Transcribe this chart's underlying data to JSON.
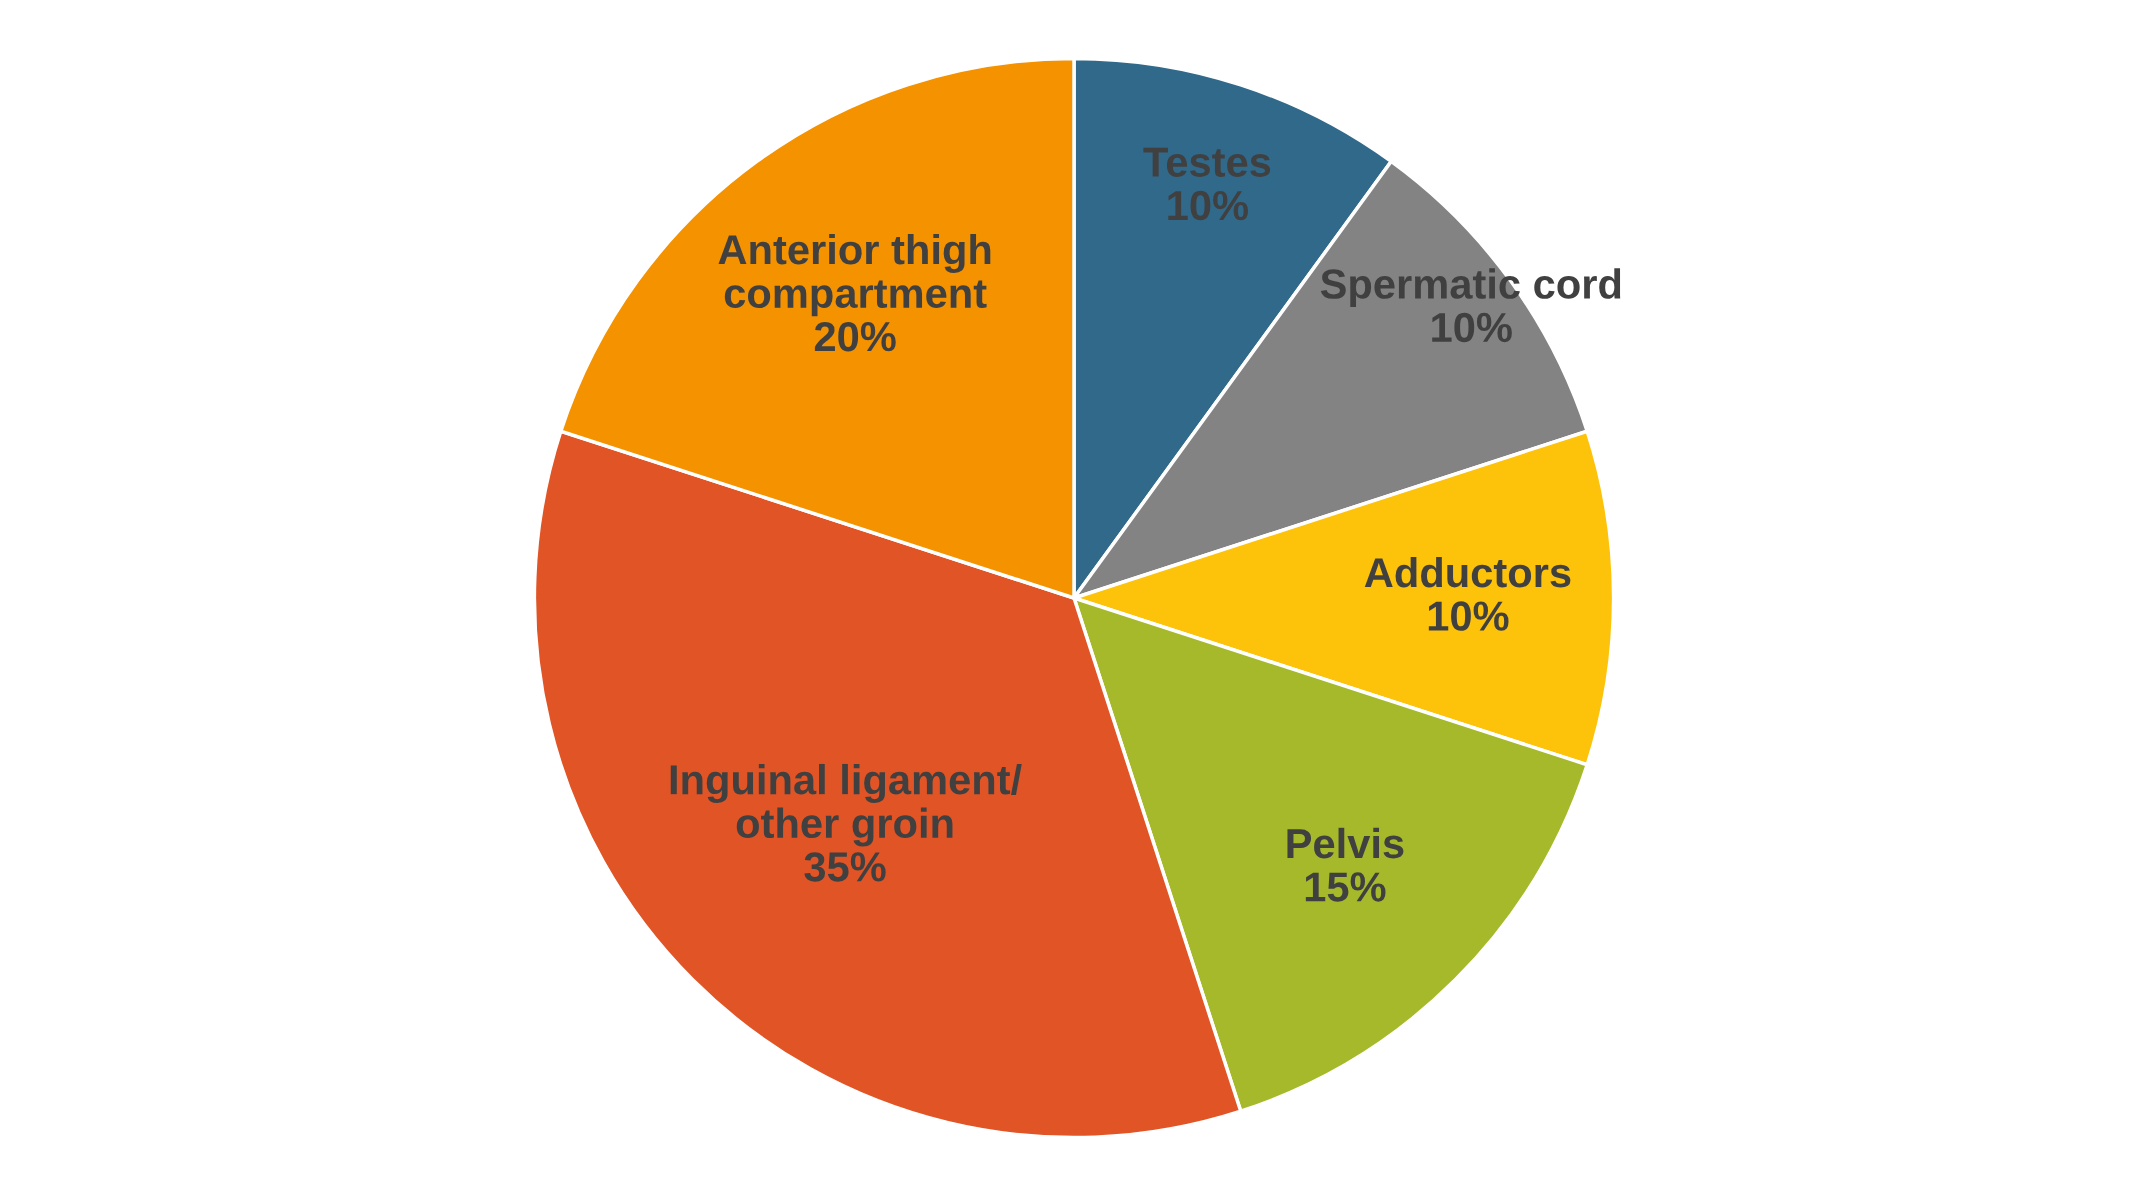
{
  "chart_data": {
    "type": "pie",
    "categories": [
      "Testes",
      "Spermatic cord",
      "Adductors",
      "Pelvis",
      "Inguinal ligament/\nother groin",
      "Anterior thigh\ncompartment"
    ],
    "values": [
      10,
      10,
      10,
      15,
      35,
      20
    ],
    "value_labels": [
      "10%",
      "10%",
      "10%",
      "15%",
      "35%",
      "20%"
    ],
    "colors": [
      "#31698a",
      "#838383",
      "#fdc20a",
      "#a5b92a",
      "#e05426",
      "#f49200"
    ],
    "legend": false
  }
}
